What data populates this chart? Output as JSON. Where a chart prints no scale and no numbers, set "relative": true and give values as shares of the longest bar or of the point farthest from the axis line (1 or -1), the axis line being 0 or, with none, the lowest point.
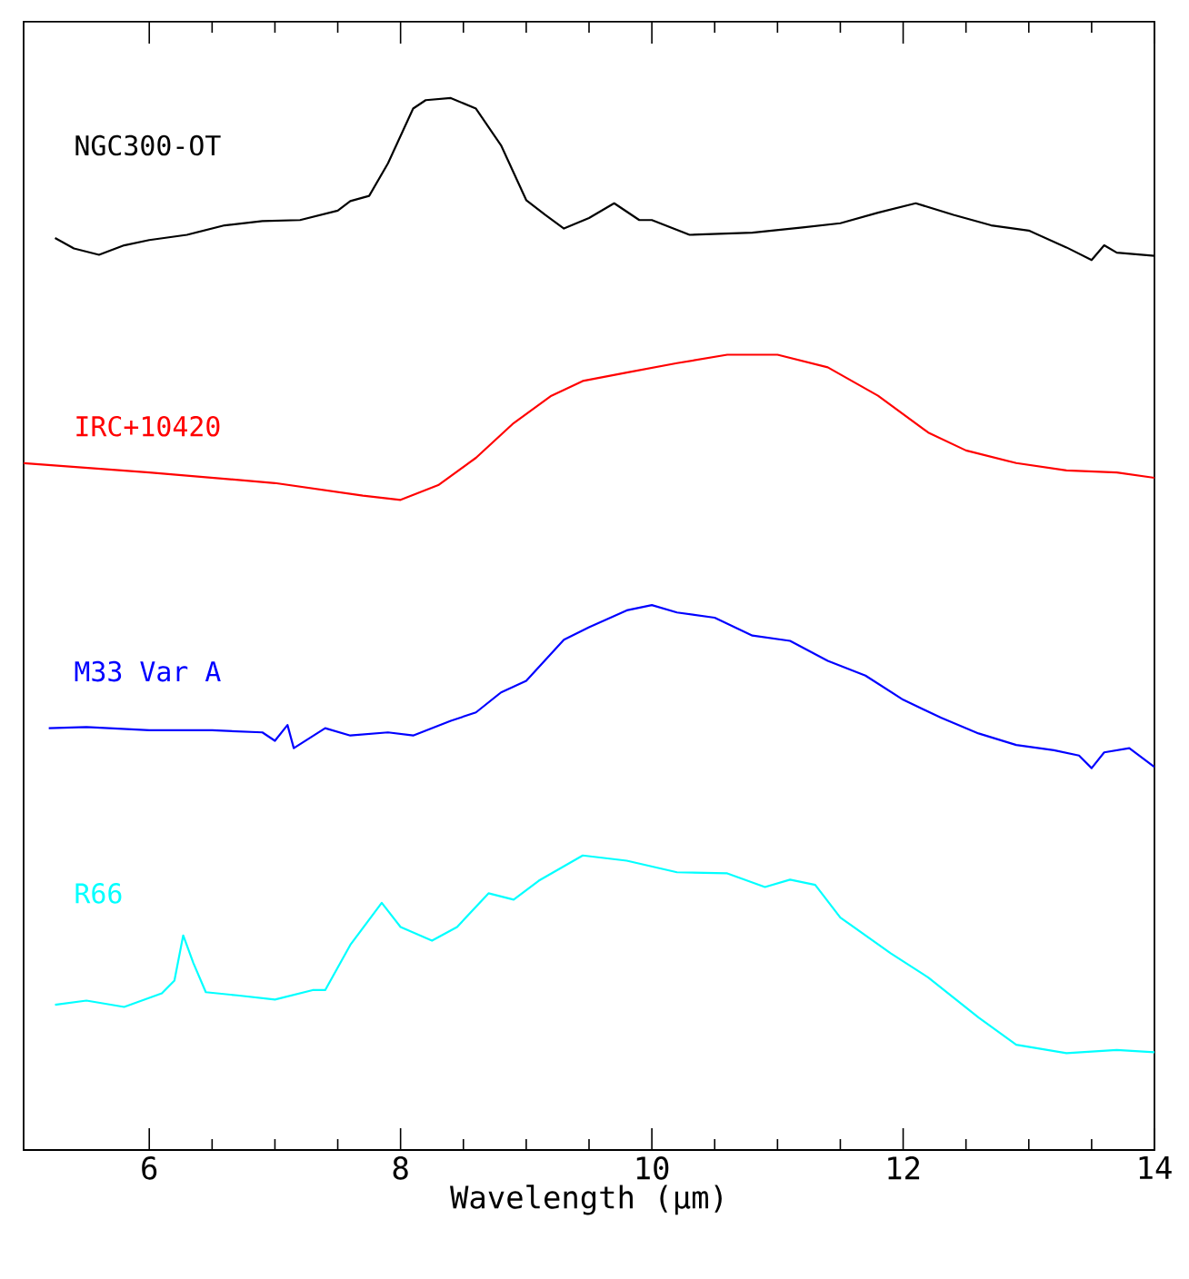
{
  "chart_data": {
    "type": "line",
    "relative": true,
    "xlabel": "Wavelength (μm)",
    "xlim": [
      5,
      14
    ],
    "xticks": [
      6,
      8,
      10,
      12,
      14
    ],
    "tick_labels": "x",
    "grid": false,
    "legend": false,
    "marker": "none",
    "line_style": "solid",
    "series": [
      {
        "name": "NGC300-OT",
        "color": "#000000",
        "x": [
          5.25,
          5.4,
          5.6,
          5.8,
          6.0,
          6.3,
          6.6,
          6.9,
          7.2,
          7.5,
          7.6,
          7.75,
          7.9,
          8.1,
          8.2,
          8.4,
          8.6,
          8.8,
          9.0,
          9.15,
          9.3,
          9.5,
          9.7,
          9.9,
          10.0,
          10.3,
          10.8,
          11.2,
          11.5,
          11.8,
          12.1,
          12.4,
          12.7,
          13.0,
          13.3,
          13.5,
          13.6,
          13.7,
          14.0
        ],
        "values": [
          0.867,
          0.857,
          0.851,
          0.86,
          0.865,
          0.87,
          0.879,
          0.883,
          0.884,
          0.893,
          0.902,
          0.907,
          0.938,
          0.99,
          0.998,
          1.0,
          0.99,
          0.955,
          0.903,
          0.889,
          0.876,
          0.886,
          0.9,
          0.884,
          0.884,
          0.87,
          0.872,
          0.877,
          0.881,
          0.891,
          0.9,
          0.889,
          0.879,
          0.874,
          0.858,
          0.846,
          0.86,
          0.853,
          0.85
        ]
      },
      {
        "name": "IRC+10420",
        "color": "#ff0000",
        "x": [
          5.0,
          6.0,
          7.0,
          7.7,
          8.0,
          8.3,
          8.6,
          8.9,
          9.2,
          9.45,
          9.8,
          10.2,
          10.6,
          11.0,
          11.4,
          11.8,
          12.2,
          12.5,
          12.9,
          13.3,
          13.7,
          14.0
        ],
        "values": [
          0.653,
          0.644,
          0.634,
          0.622,
          0.618,
          0.632,
          0.658,
          0.691,
          0.717,
          0.731,
          0.739,
          0.748,
          0.756,
          0.756,
          0.744,
          0.717,
          0.682,
          0.665,
          0.653,
          0.646,
          0.644,
          0.639
        ]
      },
      {
        "name": "M33 Var A",
        "color": "#0000ff",
        "x": [
          5.2,
          5.5,
          6.0,
          6.5,
          6.9,
          7.0,
          7.1,
          7.15,
          7.4,
          7.6,
          7.9,
          8.1,
          8.4,
          8.6,
          8.8,
          9.0,
          9.3,
          9.5,
          9.8,
          10.0,
          10.2,
          10.5,
          10.8,
          11.1,
          11.4,
          11.7,
          12.0,
          12.3,
          12.6,
          12.9,
          13.2,
          13.4,
          13.5,
          13.6,
          13.8,
          14.0
        ],
        "values": [
          0.401,
          0.402,
          0.399,
          0.399,
          0.397,
          0.389,
          0.404,
          0.382,
          0.401,
          0.394,
          0.397,
          0.394,
          0.408,
          0.416,
          0.435,
          0.446,
          0.485,
          0.497,
          0.513,
          0.518,
          0.511,
          0.506,
          0.489,
          0.484,
          0.465,
          0.451,
          0.428,
          0.411,
          0.396,
          0.385,
          0.38,
          0.375,
          0.363,
          0.378,
          0.382,
          0.364
        ]
      },
      {
        "name": "R66",
        "color": "#00ffff",
        "x": [
          5.25,
          5.5,
          5.8,
          6.1,
          6.2,
          6.27,
          6.35,
          6.45,
          6.7,
          7.0,
          7.3,
          7.4,
          7.6,
          7.85,
          8.0,
          8.25,
          8.45,
          8.7,
          8.9,
          9.1,
          9.45,
          9.8,
          10.2,
          10.6,
          10.9,
          11.1,
          11.3,
          11.5,
          11.9,
          12.2,
          12.6,
          12.9,
          13.3,
          13.7,
          14.0
        ],
        "values": [
          0.138,
          0.142,
          0.136,
          0.149,
          0.161,
          0.204,
          0.178,
          0.15,
          0.147,
          0.143,
          0.152,
          0.152,
          0.195,
          0.235,
          0.212,
          0.199,
          0.212,
          0.244,
          0.238,
          0.256,
          0.28,
          0.275,
          0.264,
          0.263,
          0.25,
          0.257,
          0.252,
          0.221,
          0.187,
          0.164,
          0.126,
          0.1,
          0.092,
          0.095,
          0.093
        ]
      }
    ]
  }
}
